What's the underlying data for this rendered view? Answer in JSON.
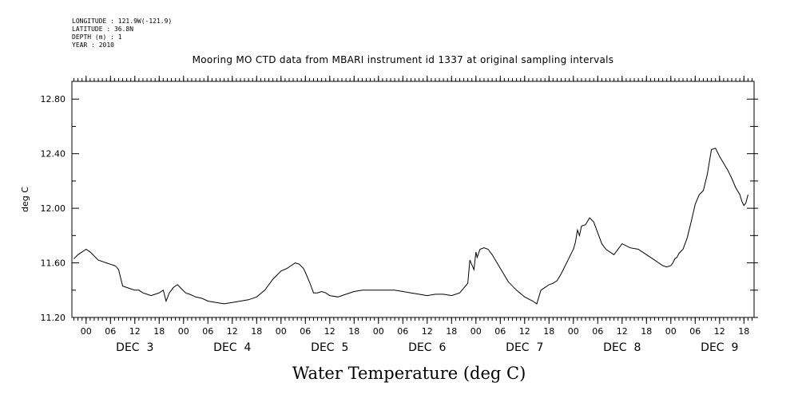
{
  "header": {
    "longitude": "LONGITUDE : 121.9W(-121.9)",
    "latitude": "LATITUDE : 36.8N",
    "depth": "DEPTH (m) : 1",
    "year": "YEAR : 2010"
  },
  "chart_data": {
    "type": "line",
    "title": "Mooring MO CTD data from MBARI instrument id 1337 at original sampling intervals",
    "xlabel": "Water Temperature (deg C)",
    "ylabel": "deg C",
    "ylim": [
      11.2,
      12.93
    ],
    "xlim_hours": [
      -3.5,
      164.5
    ],
    "yticks": [
      11.2,
      11.6,
      12.0,
      12.4,
      12.8
    ],
    "ytick_labels": [
      "11.20",
      "11.60",
      "12.00",
      "12.40",
      "12.80"
    ],
    "hour_ticks": [
      "00",
      "06",
      "12",
      "18",
      "00",
      "06",
      "12",
      "18",
      "00",
      "06",
      "12",
      "18",
      "00",
      "06",
      "12",
      "18",
      "00",
      "06",
      "12",
      "18",
      "00",
      "06",
      "12",
      "18",
      "00",
      "06",
      "12",
      "18"
    ],
    "day_labels": [
      "DEC  3",
      "DEC  4",
      "DEC  5",
      "DEC  6",
      "DEC  7",
      "DEC  8",
      "DEC  9"
    ],
    "grid": false,
    "series": [
      {
        "color": "#000000",
        "x": [
          -3.0,
          -2.0,
          -1.0,
          0.0,
          1.0,
          2.0,
          3.0,
          4.0,
          5.0,
          6.0,
          7.0,
          7.5,
          8.0,
          9.0,
          10.0,
          11.0,
          12.0,
          13.0,
          14.0,
          15.0,
          16.0,
          17.0,
          18.0,
          19.0,
          19.7,
          20.5,
          21.5,
          22.5,
          23.5,
          24.5,
          25.5,
          27.0,
          28.5,
          30.0,
          32.0,
          34.0,
          36.0,
          38.0,
          40.0,
          42.0,
          44.0,
          46.0,
          48.0,
          49.5,
          50.5,
          51.5,
          52.5,
          53.5,
          54.0,
          55.0,
          56.0,
          57.0,
          58.0,
          59.0,
          60.0,
          62.0,
          64.0,
          66.0,
          68.0,
          70.0,
          72.0,
          74.0,
          76.0,
          78.0,
          80.0,
          82.0,
          84.0,
          86.0,
          88.0,
          90.0,
          92.0,
          94.0,
          94.5,
          95.5,
          96.0,
          96.3,
          97.0,
          98.0,
          99.0,
          100.0,
          102.0,
          104.0,
          106.0,
          108.0,
          110.0,
          111.0,
          112.0,
          113.0,
          114.0,
          115.0,
          116.0,
          117.0,
          118.0,
          119.0,
          120.0,
          120.5,
          121.0,
          121.5,
          122.0,
          123.0,
          124.0,
          125.0,
          126.0,
          127.0,
          128.0,
          129.0,
          130.0,
          132.0,
          134.0,
          136.0,
          137.0,
          138.0,
          139.0,
          140.0,
          141.0,
          142.0,
          143.0,
          144.0,
          144.5,
          145.0,
          145.5,
          146.0,
          147.0,
          148.0,
          149.0,
          150.0,
          151.0,
          152.0,
          153.0,
          154.0,
          155.0,
          156.0,
          157.0,
          158.0,
          159.0,
          160.0,
          161.0,
          161.5,
          162.0,
          162.5,
          163.0
        ],
        "values": [
          11.63,
          11.66,
          11.68,
          11.7,
          11.68,
          11.65,
          11.62,
          11.61,
          11.6,
          11.59,
          11.58,
          11.57,
          11.55,
          11.43,
          11.42,
          11.41,
          11.4,
          11.4,
          11.38,
          11.37,
          11.36,
          11.37,
          11.38,
          11.4,
          11.32,
          11.38,
          11.42,
          11.44,
          11.41,
          11.38,
          11.37,
          11.35,
          11.34,
          11.32,
          11.31,
          11.3,
          11.31,
          11.32,
          11.33,
          11.35,
          11.4,
          11.48,
          11.54,
          11.56,
          11.58,
          11.6,
          11.59,
          11.56,
          11.53,
          11.46,
          11.38,
          11.38,
          11.39,
          11.38,
          11.36,
          11.35,
          11.37,
          11.39,
          11.4,
          11.4,
          11.4,
          11.4,
          11.4,
          11.39,
          11.38,
          11.37,
          11.36,
          11.37,
          11.37,
          11.36,
          11.38,
          11.45,
          11.62,
          11.55,
          11.68,
          11.64,
          11.7,
          11.71,
          11.7,
          11.66,
          11.56,
          11.46,
          11.4,
          11.35,
          11.32,
          11.3,
          11.4,
          11.42,
          11.44,
          11.45,
          11.47,
          11.52,
          11.58,
          11.64,
          11.7,
          11.75,
          11.84,
          11.8,
          11.87,
          11.88,
          11.93,
          11.9,
          11.82,
          11.74,
          11.7,
          11.68,
          11.66,
          11.74,
          11.71,
          11.7,
          11.68,
          11.66,
          11.64,
          11.62,
          11.6,
          11.58,
          11.57,
          11.58,
          11.6,
          11.63,
          11.64,
          11.67,
          11.7,
          11.78,
          11.9,
          12.03,
          12.1,
          12.13,
          12.25,
          12.43,
          12.44,
          12.38,
          12.33,
          12.28,
          12.22,
          12.15,
          12.1,
          12.05,
          12.02,
          12.04,
          12.1
        ]
      }
    ]
  }
}
